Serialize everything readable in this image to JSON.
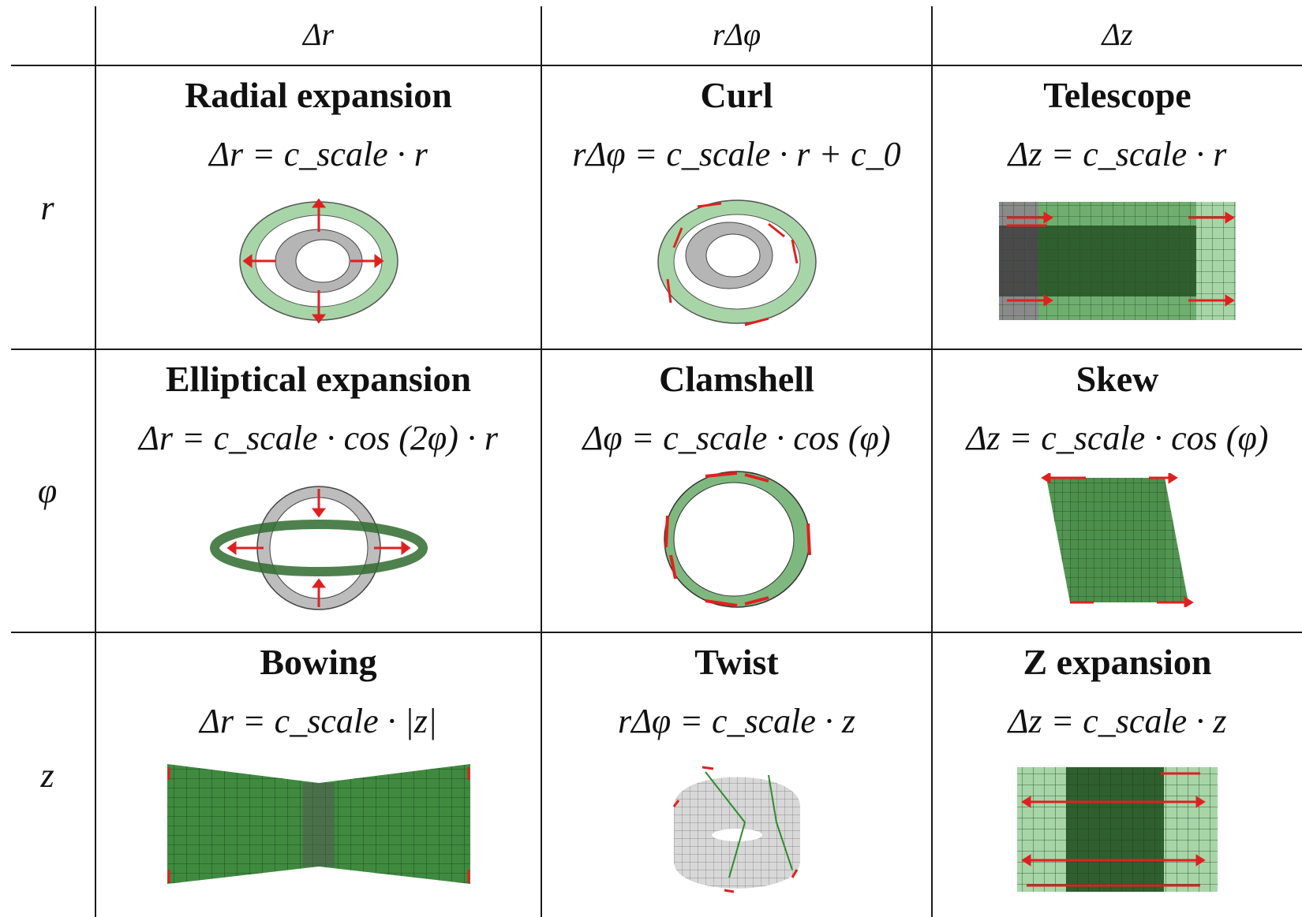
{
  "columns": [
    "Δr",
    "rΔφ",
    "Δz"
  ],
  "rows": [
    "r",
    "φ",
    "z"
  ],
  "cells": [
    {
      "title": "Radial expansion",
      "formula": "Δr = c_scale · r",
      "icon": "radial-expansion-illustration"
    },
    {
      "title": "Curl",
      "formula": "rΔφ = c_scale · r + c_0",
      "icon": "curl-illustration"
    },
    {
      "title": "Telescope",
      "formula": "Δz = c_scale · r",
      "icon": "telescope-illustration"
    },
    {
      "title": "Elliptical expansion",
      "formula": "Δr = c_scale · cos (2φ) · r",
      "icon": "elliptical-expansion-illustration"
    },
    {
      "title": "Clamshell",
      "formula": "Δφ = c_scale · cos (φ)",
      "icon": "clamshell-illustration"
    },
    {
      "title": "Skew",
      "formula": "Δz = c_scale · cos (φ)",
      "icon": "skew-illustration"
    },
    {
      "title": "Bowing",
      "formula": "Δr = c_scale · |z|",
      "icon": "bowing-illustration"
    },
    {
      "title": "Twist",
      "formula": "rΔφ = c_scale · z",
      "icon": "twist-illustration"
    },
    {
      "title": "Z expansion",
      "formula": "Δz = c_scale · z",
      "icon": "z-expansion-illustration"
    }
  ],
  "colors": {
    "green": "#5a9a5a",
    "dark_green": "#2f6b2f",
    "gray": "#9a9a9a",
    "arrow_red": "#e02020",
    "line": "#1a1a1a"
  }
}
